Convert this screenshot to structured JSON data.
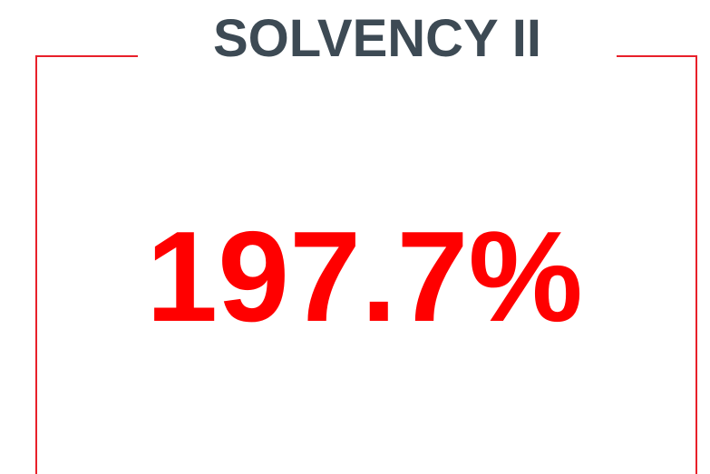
{
  "title": "SOLVENCY II",
  "value": "197.7%"
}
